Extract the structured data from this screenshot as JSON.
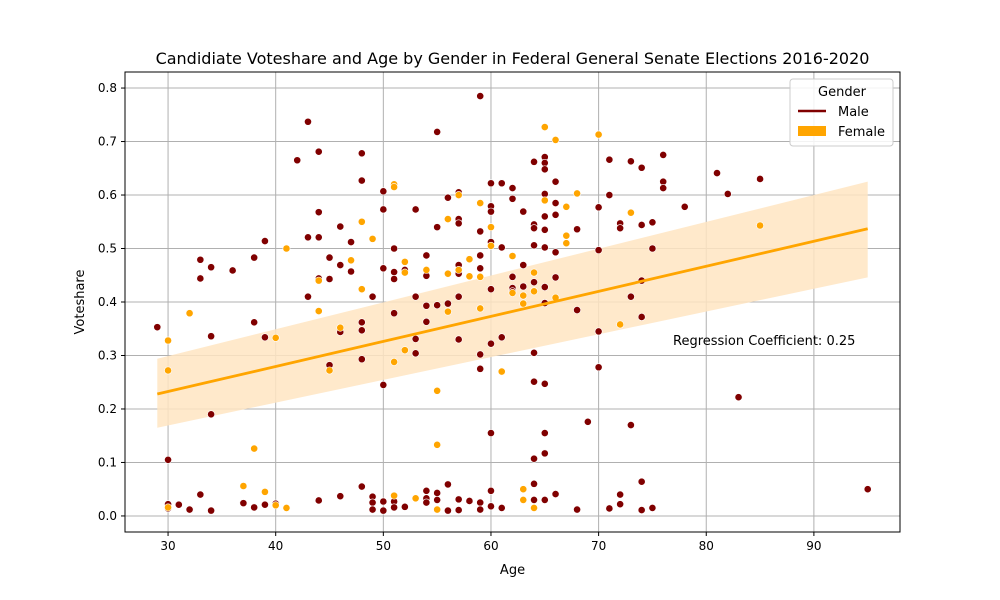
{
  "chart_data": {
    "type": "scatter",
    "title": "Candidiate Voteshare and Age by Gender in Federal General Senate Elections 2016-2020",
    "xlabel": "Age",
    "ylabel": "Voteshare",
    "xlim": [
      26,
      98
    ],
    "ylim": [
      -0.03,
      0.83
    ],
    "xticks": [
      30,
      40,
      50,
      60,
      70,
      80,
      90
    ],
    "yticks": [
      0.0,
      0.1,
      0.2,
      0.3,
      0.4,
      0.5,
      0.6,
      0.7,
      0.8
    ],
    "xtick_labels": [
      "30",
      "40",
      "50",
      "60",
      "70",
      "80",
      "90"
    ],
    "ytick_labels": [
      "0.0",
      "0.1",
      "0.2",
      "0.3",
      "0.4",
      "0.5",
      "0.6",
      "0.7",
      "0.8"
    ],
    "grid": true,
    "legend": {
      "title": "Gender",
      "position": "top-right",
      "entries": [
        {
          "label": "Male",
          "color": "#800000",
          "kind": "line"
        },
        {
          "label": "Female",
          "color": "#FFA500",
          "kind": "patch"
        }
      ]
    },
    "annotation": "Regression Coefficient: 0.25",
    "regression": {
      "x": [
        29,
        95
      ],
      "y": [
        0.228,
        0.537
      ],
      "ci_lower": [
        0.165,
        0.446
      ],
      "ci_upper": [
        0.294,
        0.625
      ],
      "color": "#FFA500",
      "band_color": "#FFE5C2"
    },
    "series": [
      {
        "name": "Male",
        "color": "#800000",
        "points": [
          [
            29,
            0.353
          ],
          [
            30,
            0.105
          ],
          [
            30,
            0.022
          ],
          [
            30,
            0.014
          ],
          [
            31,
            0.021
          ],
          [
            32,
            0.012
          ],
          [
            33,
            0.479
          ],
          [
            33,
            0.444
          ],
          [
            33,
            0.04
          ],
          [
            34,
            0.465
          ],
          [
            34,
            0.336
          ],
          [
            34,
            0.19
          ],
          [
            34,
            0.01
          ],
          [
            36,
            0.459
          ],
          [
            37,
            0.024
          ],
          [
            38,
            0.483
          ],
          [
            38,
            0.362
          ],
          [
            38,
            0.016
          ],
          [
            39,
            0.514
          ],
          [
            39,
            0.334
          ],
          [
            39,
            0.021
          ],
          [
            40,
            0.023
          ],
          [
            42,
            0.665
          ],
          [
            43,
            0.737
          ],
          [
            43,
            0.521
          ],
          [
            43,
            0.41
          ],
          [
            44,
            0.681
          ],
          [
            44,
            0.568
          ],
          [
            44,
            0.521
          ],
          [
            44,
            0.444
          ],
          [
            44,
            0.029
          ],
          [
            45,
            0.483
          ],
          [
            45,
            0.443
          ],
          [
            45,
            0.282
          ],
          [
            46,
            0.541
          ],
          [
            46,
            0.469
          ],
          [
            46,
            0.344
          ],
          [
            46,
            0.037
          ],
          [
            47,
            0.512
          ],
          [
            47,
            0.457
          ],
          [
            48,
            0.678
          ],
          [
            48,
            0.627
          ],
          [
            48,
            0.362
          ],
          [
            48,
            0.347
          ],
          [
            48,
            0.293
          ],
          [
            48,
            0.055
          ],
          [
            49,
            0.41
          ],
          [
            49,
            0.036
          ],
          [
            49,
            0.025
          ],
          [
            49,
            0.012
          ],
          [
            50,
            0.607
          ],
          [
            50,
            0.573
          ],
          [
            50,
            0.463
          ],
          [
            50,
            0.245
          ],
          [
            50,
            0.027
          ],
          [
            50,
            0.01
          ],
          [
            51,
            0.5
          ],
          [
            51,
            0.456
          ],
          [
            51,
            0.443
          ],
          [
            51,
            0.379
          ],
          [
            51,
            0.027
          ],
          [
            51,
            0.016
          ],
          [
            52,
            0.46
          ],
          [
            52,
            0.017
          ],
          [
            53,
            0.573
          ],
          [
            53,
            0.41
          ],
          [
            53,
            0.331
          ],
          [
            53,
            0.304
          ],
          [
            54,
            0.487
          ],
          [
            54,
            0.449
          ],
          [
            54,
            0.393
          ],
          [
            54,
            0.363
          ],
          [
            54,
            0.047
          ],
          [
            54,
            0.033
          ],
          [
            54,
            0.025
          ],
          [
            55,
            0.718
          ],
          [
            55,
            0.54
          ],
          [
            55,
            0.394
          ],
          [
            55,
            0.043
          ],
          [
            55,
            0.03
          ],
          [
            56,
            0.595
          ],
          [
            56,
            0.397
          ],
          [
            56,
            0.059
          ],
          [
            56,
            0.01
          ],
          [
            57,
            0.605
          ],
          [
            57,
            0.555
          ],
          [
            57,
            0.547
          ],
          [
            57,
            0.469
          ],
          [
            57,
            0.453
          ],
          [
            57,
            0.41
          ],
          [
            57,
            0.33
          ],
          [
            57,
            0.031
          ],
          [
            57,
            0.011
          ],
          [
            58,
            0.48
          ],
          [
            58,
            0.028
          ],
          [
            59,
            0.785
          ],
          [
            59,
            0.532
          ],
          [
            59,
            0.487
          ],
          [
            59,
            0.463
          ],
          [
            59,
            0.302
          ],
          [
            59,
            0.275
          ],
          [
            59,
            0.025
          ],
          [
            59,
            0.012
          ],
          [
            60,
            0.622
          ],
          [
            60,
            0.579
          ],
          [
            60,
            0.569
          ],
          [
            60,
            0.512
          ],
          [
            60,
            0.424
          ],
          [
            60,
            0.322
          ],
          [
            60,
            0.155
          ],
          [
            60,
            0.047
          ],
          [
            60,
            0.018
          ],
          [
            61,
            0.622
          ],
          [
            61,
            0.502
          ],
          [
            61,
            0.334
          ],
          [
            61,
            0.015
          ],
          [
            62,
            0.613
          ],
          [
            62,
            0.593
          ],
          [
            62,
            0.447
          ],
          [
            62,
            0.426
          ],
          [
            62,
            0.42
          ],
          [
            63,
            0.569
          ],
          [
            63,
            0.469
          ],
          [
            63,
            0.429
          ],
          [
            64,
            0.662
          ],
          [
            64,
            0.545
          ],
          [
            64,
            0.538
          ],
          [
            64,
            0.506
          ],
          [
            64,
            0.437
          ],
          [
            64,
            0.305
          ],
          [
            64,
            0.251
          ],
          [
            64,
            0.107
          ],
          [
            64,
            0.06
          ],
          [
            64,
            0.03
          ],
          [
            65,
            0.671
          ],
          [
            65,
            0.66
          ],
          [
            65,
            0.648
          ],
          [
            65,
            0.602
          ],
          [
            65,
            0.56
          ],
          [
            65,
            0.535
          ],
          [
            65,
            0.502
          ],
          [
            65,
            0.428
          ],
          [
            65,
            0.398
          ],
          [
            65,
            0.247
          ],
          [
            65,
            0.155
          ],
          [
            65,
            0.117
          ],
          [
            65,
            0.03
          ],
          [
            66,
            0.625
          ],
          [
            66,
            0.585
          ],
          [
            66,
            0.563
          ],
          [
            66,
            0.493
          ],
          [
            66,
            0.446
          ],
          [
            66,
            0.041
          ],
          [
            68,
            0.536
          ],
          [
            68,
            0.385
          ],
          [
            68,
            0.012
          ],
          [
            69,
            0.176
          ],
          [
            70,
            0.577
          ],
          [
            70,
            0.497
          ],
          [
            70,
            0.345
          ],
          [
            70,
            0.278
          ],
          [
            71,
            0.666
          ],
          [
            71,
            0.6
          ],
          [
            71,
            0.014
          ],
          [
            72,
            0.547
          ],
          [
            72,
            0.538
          ],
          [
            72,
            0.04
          ],
          [
            72,
            0.022
          ],
          [
            73,
            0.663
          ],
          [
            73,
            0.41
          ],
          [
            73,
            0.17
          ],
          [
            74,
            0.651
          ],
          [
            74,
            0.544
          ],
          [
            74,
            0.44
          ],
          [
            74,
            0.372
          ],
          [
            74,
            0.064
          ],
          [
            74,
            0.011
          ],
          [
            75,
            0.549
          ],
          [
            75,
            0.5
          ],
          [
            75,
            0.015
          ],
          [
            76,
            0.675
          ],
          [
            76,
            0.625
          ],
          [
            76,
            0.613
          ],
          [
            78,
            0.578
          ],
          [
            81,
            0.641
          ],
          [
            82,
            0.602
          ],
          [
            83,
            0.222
          ],
          [
            85,
            0.63
          ],
          [
            95,
            0.05
          ]
        ]
      },
      {
        "name": "Female",
        "color": "#FFA500",
        "points": [
          [
            30,
            0.328
          ],
          [
            30,
            0.272
          ],
          [
            30,
            0.016
          ],
          [
            32,
            0.379
          ],
          [
            37,
            0.056
          ],
          [
            38,
            0.126
          ],
          [
            39,
            0.045
          ],
          [
            40,
            0.333
          ],
          [
            40,
            0.02
          ],
          [
            41,
            0.5
          ],
          [
            41,
            0.015
          ],
          [
            44,
            0.44
          ],
          [
            44,
            0.383
          ],
          [
            45,
            0.272
          ],
          [
            46,
            0.352
          ],
          [
            47,
            0.478
          ],
          [
            48,
            0.55
          ],
          [
            48,
            0.424
          ],
          [
            49,
            0.518
          ],
          [
            51,
            0.62
          ],
          [
            51,
            0.615
          ],
          [
            51,
            0.288
          ],
          [
            51,
            0.038
          ],
          [
            52,
            0.475
          ],
          [
            52,
            0.455
          ],
          [
            52,
            0.31
          ],
          [
            53,
            0.033
          ],
          [
            54,
            0.46
          ],
          [
            55,
            0.234
          ],
          [
            55,
            0.133
          ],
          [
            55,
            0.012
          ],
          [
            56,
            0.555
          ],
          [
            56,
            0.453
          ],
          [
            56,
            0.382
          ],
          [
            57,
            0.6
          ],
          [
            57,
            0.46
          ],
          [
            58,
            0.48
          ],
          [
            58,
            0.448
          ],
          [
            59,
            0.585
          ],
          [
            59,
            0.447
          ],
          [
            59,
            0.388
          ],
          [
            60,
            0.54
          ],
          [
            60,
            0.505
          ],
          [
            61,
            0.27
          ],
          [
            62,
            0.486
          ],
          [
            62,
            0.417
          ],
          [
            63,
            0.412
          ],
          [
            63,
            0.397
          ],
          [
            63,
            0.05
          ],
          [
            63,
            0.03
          ],
          [
            64,
            0.455
          ],
          [
            64,
            0.42
          ],
          [
            64,
            0.015
          ],
          [
            65,
            0.727
          ],
          [
            65,
            0.59
          ],
          [
            66,
            0.703
          ],
          [
            66,
            0.408
          ],
          [
            67,
            0.578
          ],
          [
            67,
            0.524
          ],
          [
            67,
            0.51
          ],
          [
            68,
            0.603
          ],
          [
            70,
            0.713
          ],
          [
            72,
            0.358
          ],
          [
            73,
            0.567
          ],
          [
            85,
            0.543
          ]
        ]
      }
    ]
  }
}
